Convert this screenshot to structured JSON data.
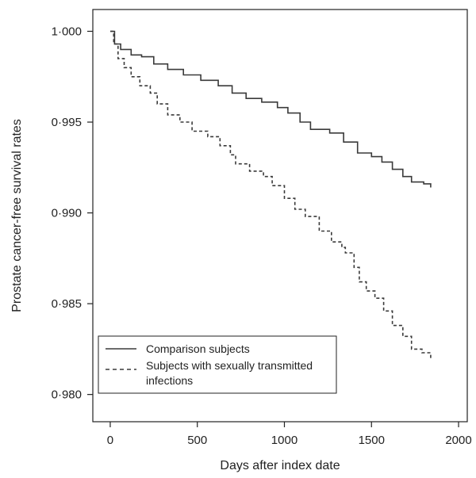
{
  "chart_data": {
    "type": "line",
    "title": "",
    "xlabel": "Days after index date",
    "ylabel": "Prostate cancer-free survival rates",
    "xlim": [
      -100,
      2050
    ],
    "ylim": [
      0.9785,
      1.0012
    ],
    "x_ticks": [
      0,
      500,
      1000,
      1500,
      2000
    ],
    "x_tick_labels": [
      "0",
      "500",
      "1000",
      "1500",
      "2000"
    ],
    "y_ticks": [
      0.98,
      0.985,
      0.99,
      0.995,
      1.0
    ],
    "y_tick_labels": [
      "0·980",
      "0·985",
      "0·990",
      "0·995",
      "1·000"
    ],
    "grid": false,
    "legend_position": "bottom-left",
    "series": [
      {
        "name": "Comparison subjects",
        "line_style": "solid",
        "color": "#3a3a3a",
        "x": [
          0,
          25,
          60,
          120,
          180,
          250,
          330,
          420,
          520,
          620,
          700,
          780,
          870,
          960,
          1020,
          1090,
          1150,
          1260,
          1340,
          1420,
          1500,
          1560,
          1620,
          1680,
          1730,
          1800,
          1840
        ],
        "y": [
          1.0,
          0.9993,
          0.999,
          0.9987,
          0.9986,
          0.9982,
          0.9979,
          0.9976,
          0.9973,
          0.997,
          0.9966,
          0.9963,
          0.9961,
          0.9958,
          0.9955,
          0.995,
          0.9946,
          0.9944,
          0.9939,
          0.9933,
          0.9931,
          0.9928,
          0.9924,
          0.992,
          0.9917,
          0.9916,
          0.9914
        ]
      },
      {
        "name": "Subjects with sexually transmitted infections",
        "line_style": "dashed",
        "color": "#3a3a3a",
        "x": [
          0,
          20,
          45,
          80,
          120,
          170,
          230,
          270,
          330,
          400,
          470,
          560,
          630,
          690,
          720,
          800,
          880,
          930,
          1000,
          1060,
          1120,
          1200,
          1270,
          1330,
          1350,
          1400,
          1430,
          1470,
          1520,
          1570,
          1620,
          1680,
          1730,
          1790,
          1840
        ],
        "y": [
          1.0,
          0.9993,
          0.9985,
          0.998,
          0.9975,
          0.997,
          0.9966,
          0.996,
          0.9954,
          0.995,
          0.9945,
          0.9942,
          0.9937,
          0.9932,
          0.9927,
          0.9923,
          0.992,
          0.9915,
          0.9908,
          0.9902,
          0.9898,
          0.989,
          0.9884,
          0.9881,
          0.9878,
          0.987,
          0.9862,
          0.9857,
          0.9853,
          0.9846,
          0.9838,
          0.9832,
          0.9825,
          0.9823,
          0.9819
        ]
      }
    ]
  },
  "legend": {
    "entries": [
      {
        "label": "Comparison subjects",
        "line_style": "solid"
      },
      {
        "label_line1": "Subjects with sexually transmitted",
        "label_line2": "infections",
        "line_style": "dashed"
      }
    ]
  },
  "colors": {
    "axis": "#222222",
    "line": "#3a3a3a",
    "background": "#ffffff"
  }
}
